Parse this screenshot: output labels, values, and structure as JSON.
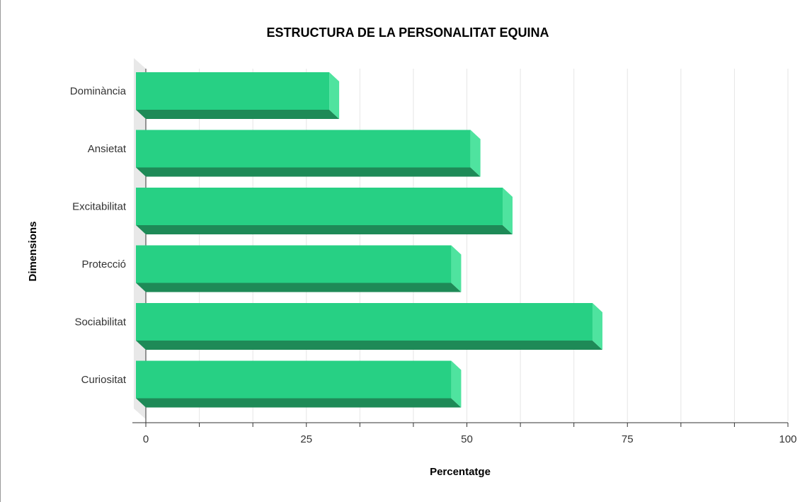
{
  "chart_data": {
    "type": "bar",
    "orientation": "horizontal",
    "title": "ESTRUCTURA DE LA PERSONALITAT EQUINA",
    "xlabel": "Percentatge",
    "ylabel": "Dimensions",
    "categories": [
      "Dominància",
      "Ansietat",
      "Excitabilitat",
      "Protecció",
      "Sociabilitat",
      "Curiositat"
    ],
    "values": [
      30,
      52,
      57,
      49,
      71,
      49
    ],
    "xlim": [
      0,
      100
    ],
    "xticks": [
      "0",
      "25",
      "50",
      "75",
      "100"
    ],
    "grid": true,
    "legend": "none",
    "three_d": true,
    "colors": {
      "bar_front": "#27d084",
      "bar_bottom": "#1e8a57",
      "bar_side": "#4fe39f",
      "grid": "#e6e6e6",
      "axis": "#333333",
      "wall": "#e8e8e8"
    }
  }
}
